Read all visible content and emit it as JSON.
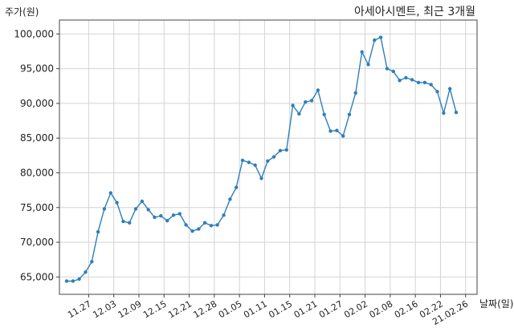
{
  "chart_data": {
    "type": "line",
    "title": "아세아시멘트, 최근 3개월",
    "xlabel": "날짜(일)",
    "ylabel": "주가(원)",
    "ylim": [
      62500,
      102000
    ],
    "grid": true,
    "color": "#2e7fb8",
    "yticks": [
      65000,
      70000,
      75000,
      80000,
      85000,
      90000,
      95000,
      100000
    ],
    "ytick_labels": [
      "65,000",
      "70,000",
      "75,000",
      "80,000",
      "85,000",
      "90,000",
      "95,000",
      "100,000"
    ],
    "xtick_labels": [
      "11.27",
      "12.03",
      "12.09",
      "12.15",
      "12.21",
      "12.28",
      "01.05",
      "01.11",
      "01.15",
      "01.21",
      "01.27",
      "02.02",
      "02.08",
      "02.16",
      "02.22",
      "21.02.26"
    ],
    "xtick_positions": [
      3.5,
      7.5,
      11.5,
      15.5,
      19.5,
      23.5,
      27.5,
      31.5,
      35.5,
      39.5,
      43.5,
      47.5,
      51.5,
      55.5,
      59.5,
      63.5
    ],
    "series": [
      {
        "values": [
          64400,
          64400,
          64700,
          65700,
          67200,
          71500,
          74800,
          77100,
          75700,
          73000,
          72800,
          74800,
          75900,
          74700,
          73600,
          73800,
          73100,
          73900,
          74100,
          72500,
          71600,
          71900,
          72800,
          72400,
          72500,
          73900,
          76200,
          77900,
          81800,
          81500,
          81100,
          79200,
          81700,
          82300,
          83200,
          83300,
          89700,
          88500,
          90200,
          90400,
          91900,
          88400,
          86000,
          86100,
          85300,
          88400,
          91500,
          97400,
          95600,
          99100,
          99500,
          95000,
          94600,
          93300,
          93700,
          93400,
          93000,
          93000,
          92700,
          91700,
          88600,
          92100,
          88700
        ]
      }
    ]
  }
}
